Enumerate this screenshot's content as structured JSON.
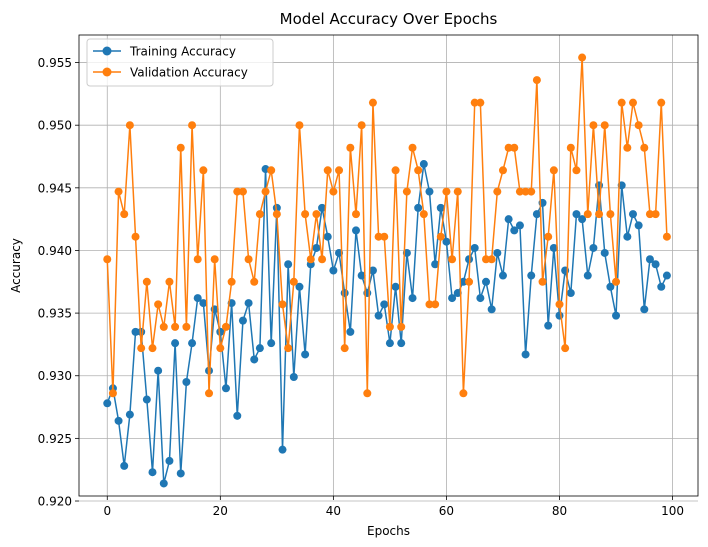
{
  "chart_data": {
    "type": "line",
    "title": "Model Accuracy Over Epochs",
    "xlabel": "Epochs",
    "ylabel": "Accuracy",
    "xlim": [
      -5,
      104.5
    ],
    "ylim": [
      0.9204,
      0.9572
    ],
    "xticks": [
      0,
      20,
      40,
      60,
      80,
      100
    ],
    "yticks": [
      0.92,
      0.925,
      0.93,
      0.935,
      0.94,
      0.945,
      0.95,
      0.955
    ],
    "xtick_labels": [
      "0",
      "20",
      "40",
      "60",
      "80",
      "100"
    ],
    "ytick_labels": [
      "0.920",
      "0.925",
      "0.930",
      "0.935",
      "0.940",
      "0.945",
      "0.950",
      "0.955"
    ],
    "grid": true,
    "legend_position": "top-left",
    "x": [
      0,
      1,
      2,
      3,
      4,
      5,
      6,
      7,
      8,
      9,
      10,
      11,
      12,
      13,
      14,
      15,
      16,
      17,
      18,
      19,
      20,
      21,
      22,
      23,
      24,
      25,
      26,
      27,
      28,
      29,
      30,
      31,
      32,
      33,
      34,
      35,
      36,
      37,
      38,
      39,
      40,
      41,
      42,
      43,
      44,
      45,
      46,
      47,
      48,
      49,
      50,
      51,
      52,
      53,
      54,
      55,
      56,
      57,
      58,
      59,
      60,
      61,
      62,
      63,
      64,
      65,
      66,
      67,
      68,
      69,
      70,
      71,
      72,
      73,
      74,
      75,
      76,
      77,
      78,
      79,
      80,
      81,
      82,
      83,
      84,
      85,
      86,
      87,
      88,
      89,
      90,
      91,
      92,
      93,
      94,
      95,
      96,
      97,
      98,
      99
    ],
    "series": [
      {
        "name": "Training Accuracy",
        "color": "#1f77b4",
        "values": [
          0.9278,
          0.929,
          0.9264,
          0.9228,
          0.9269,
          0.9335,
          0.9335,
          0.9281,
          0.9223,
          0.9304,
          0.9214,
          0.9232,
          0.9326,
          0.9222,
          0.9295,
          0.9326,
          0.9362,
          0.9358,
          0.9304,
          0.9353,
          0.9335,
          0.929,
          0.9358,
          0.9268,
          0.9344,
          0.9358,
          0.9313,
          0.9322,
          0.9465,
          0.9326,
          0.9434,
          0.9241,
          0.9389,
          0.9299,
          0.9371,
          0.9317,
          0.9389,
          0.9402,
          0.9434,
          0.9411,
          0.9384,
          0.9398,
          0.9366,
          0.9335,
          0.9416,
          0.938,
          0.9366,
          0.9384,
          0.9348,
          0.9357,
          0.9326,
          0.9371,
          0.9326,
          0.9398,
          0.9362,
          0.9434,
          0.9469,
          0.9447,
          0.9389,
          0.9434,
          0.9407,
          0.9362,
          0.9366,
          0.9375,
          0.9393,
          0.9402,
          0.9362,
          0.9375,
          0.9353,
          0.9398,
          0.938,
          0.9425,
          0.9416,
          0.942,
          0.9317,
          0.938,
          0.9429,
          0.9438,
          0.934,
          0.9402,
          0.9348,
          0.9384,
          0.9366,
          0.9429,
          0.9425,
          0.938,
          0.9402,
          0.9452,
          0.9398,
          0.9371,
          0.9348,
          0.9452,
          0.9411,
          0.9429,
          0.942,
          0.9353,
          0.9393,
          0.9389,
          0.9371,
          0.938
        ]
      },
      {
        "name": "Validation Accuracy",
        "color": "#ff7f0e",
        "values": [
          0.9393,
          0.9286,
          0.9447,
          0.9429,
          0.95,
          0.9411,
          0.9322,
          0.9375,
          0.9322,
          0.9357,
          0.9339,
          0.9375,
          0.9339,
          0.9482,
          0.9339,
          0.95,
          0.9393,
          0.9464,
          0.9286,
          0.9393,
          0.9322,
          0.9339,
          0.9375,
          0.9447,
          0.9447,
          0.9393,
          0.9375,
          0.9429,
          0.9447,
          0.9464,
          0.9429,
          0.9357,
          0.9322,
          0.9375,
          0.95,
          0.9429,
          0.9393,
          0.9429,
          0.9393,
          0.9464,
          0.9447,
          0.9464,
          0.9322,
          0.9482,
          0.9429,
          0.95,
          0.9286,
          0.9518,
          0.9411,
          0.9411,
          0.9339,
          0.9464,
          0.9339,
          0.9447,
          0.9482,
          0.9464,
          0.9429,
          0.9357,
          0.9357,
          0.9411,
          0.9447,
          0.9393,
          0.9447,
          0.9286,
          0.9375,
          0.9518,
          0.9518,
          0.9393,
          0.9393,
          0.9447,
          0.9464,
          0.9482,
          0.9482,
          0.9447,
          0.9447,
          0.9447,
          0.9536,
          0.9375,
          0.9411,
          0.9464,
          0.9357,
          0.9322,
          0.9482,
          0.9464,
          0.9554,
          0.9429,
          0.95,
          0.9429,
          0.95,
          0.9429,
          0.9375,
          0.9518,
          0.9482,
          0.9518,
          0.95,
          0.9482,
          0.9429,
          0.9429,
          0.9518,
          0.9411
        ]
      }
    ]
  }
}
